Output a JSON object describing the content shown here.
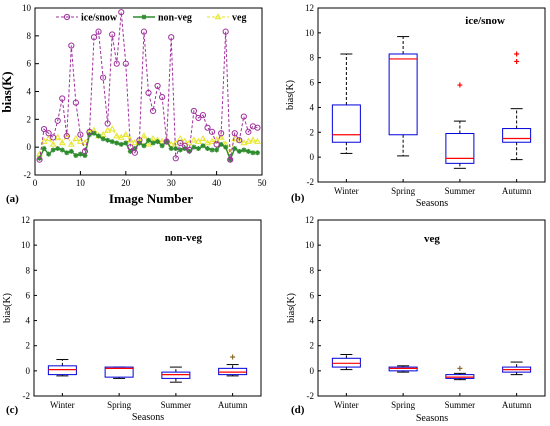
{
  "colors": {
    "ice": "#a0309e",
    "nonveg": "#2e8b2e",
    "veg": "#e6e62a",
    "box": "#0000dd",
    "median": "#ff0000",
    "outlier": "#ff0000",
    "outlier_dark": "#8b6a2b"
  },
  "chart_data": [
    {
      "type": "line",
      "panel_label": "(a)",
      "xlabel": "Image Number",
      "ylabel": "bias(K)",
      "xlim": [
        0,
        50
      ],
      "ylim": [
        -2,
        10
      ],
      "xticks": [
        0,
        10,
        20,
        30,
        40,
        50
      ],
      "yticks": [
        -2,
        0,
        2,
        4,
        6,
        8,
        10
      ],
      "legend_position": "top",
      "series": [
        {
          "name": "ice/snow",
          "color": "ice",
          "marker": "circle",
          "dash": true,
          "values": [
            -0.9,
            1.3,
            1.0,
            0.7,
            1.9,
            3.5,
            0.8,
            7.3,
            3.2,
            0.9,
            -0.3,
            1.1,
            7.9,
            8.3,
            5.0,
            1.7,
            8.1,
            6.0,
            9.7,
            6.0,
            0.0,
            -0.4,
            0.5,
            8.3,
            3.9,
            2.6,
            4.4,
            3.6,
            0.4,
            7.9,
            -0.8,
            0.3,
            0.1,
            -0.2,
            2.6,
            2.1,
            2.3,
            1.4,
            1.1,
            0.2,
            1.0,
            8.3,
            -0.9,
            1.0,
            0.5,
            2.2,
            1.1,
            1.5,
            1.4
          ]
        },
        {
          "name": "non-veg",
          "color": "nonveg",
          "marker": "star",
          "dash": false,
          "values": [
            -0.8,
            -0.1,
            -0.5,
            -0.2,
            -0.1,
            -0.2,
            -0.4,
            -0.3,
            -0.6,
            -0.5,
            -0.6,
            0.9,
            1.0,
            0.8,
            0.6,
            0.5,
            0.4,
            0.3,
            0.2,
            0.3,
            -0.3,
            -0.1,
            0.3,
            0.1,
            0.5,
            0.3,
            0.4,
            0.1,
            0.4,
            -0.1,
            -0.1,
            -0.2,
            -0.1,
            -0.3,
            0.0,
            -0.1,
            0.1,
            -0.1,
            -0.2,
            -0.2,
            0.2,
            0.0,
            -0.9,
            -0.1,
            -0.3,
            -0.2,
            -0.3,
            -0.4,
            -0.4
          ]
        },
        {
          "name": "veg",
          "color": "veg",
          "marker": "triangle",
          "dash": true,
          "values": [
            -0.5,
            0.4,
            0.6,
            0.2,
            0.7,
            0.3,
            0.9,
            0.2,
            0.6,
            0.4,
            0.3,
            1.1,
            1.2,
            0.8,
            0.9,
            1.2,
            1.3,
            0.8,
            0.7,
            0.9,
            0.5,
            0.3,
            0.4,
            0.8,
            0.2,
            0.6,
            0.5,
            0.4,
            0.5,
            0.2,
            0.3,
            0.6,
            0.4,
            0.3,
            0.5,
            0.4,
            0.6,
            0.3,
            0.4,
            0.5,
            0.7,
            0.2,
            -0.4,
            0.6,
            0.5,
            0.3,
            0.4,
            0.5,
            0.4
          ]
        }
      ]
    },
    {
      "type": "box",
      "panel_label": "(b)",
      "title": "ice/snow",
      "xlabel": "Seasons",
      "ylabel": "bias(K)",
      "ylim": [
        -2,
        12
      ],
      "yticks": [
        -2,
        0,
        2,
        4,
        6,
        8,
        10,
        12
      ],
      "categories": [
        "Winter",
        "Spring",
        "Summer",
        "Autumn"
      ],
      "boxes": [
        {
          "whisker_low": 0.3,
          "q1": 1.2,
          "median": 1.8,
          "q3": 4.2,
          "whisker_high": 8.3,
          "outliers": []
        },
        {
          "whisker_low": 0.1,
          "q1": 1.8,
          "median": 7.9,
          "q3": 8.3,
          "whisker_high": 9.7,
          "outliers": []
        },
        {
          "whisker_low": -0.9,
          "q1": -0.5,
          "median": -0.1,
          "q3": 1.9,
          "whisker_high": 2.9,
          "outliers": [
            5.8
          ]
        },
        {
          "whisker_low": -0.2,
          "q1": 1.2,
          "median": 1.5,
          "q3": 2.3,
          "whisker_high": 3.9,
          "outliers": [
            7.7,
            8.3
          ]
        }
      ]
    },
    {
      "type": "box",
      "panel_label": "(c)",
      "title": "non-veg",
      "xlabel": "Seasons",
      "ylabel": "bias(K)",
      "ylim": [
        -2,
        12
      ],
      "yticks": [
        -2,
        0,
        2,
        4,
        6,
        8,
        10,
        12
      ],
      "categories": [
        "Winter",
        "Spring",
        "Summer",
        "Autumn"
      ],
      "boxes": [
        {
          "whisker_low": -0.4,
          "q1": -0.3,
          "median": 0.1,
          "q3": 0.4,
          "whisker_high": 0.9,
          "outliers": []
        },
        {
          "whisker_low": -0.6,
          "q1": -0.5,
          "median": 0.2,
          "q3": 0.3,
          "whisker_high": 0.3,
          "outliers": []
        },
        {
          "whisker_low": -0.9,
          "q1": -0.6,
          "median": -0.3,
          "q3": -0.1,
          "whisker_high": 0.3,
          "outliers": []
        },
        {
          "whisker_low": -0.4,
          "q1": -0.3,
          "median": -0.1,
          "q3": 0.2,
          "whisker_high": 0.5,
          "outliers": [
            1.1
          ]
        }
      ]
    },
    {
      "type": "box",
      "panel_label": "(d)",
      "title": "veg",
      "xlabel": "Seasons",
      "ylabel": "bias(K)",
      "ylim": [
        -2,
        12
      ],
      "yticks": [
        -2,
        0,
        2,
        4,
        6,
        8,
        10,
        12
      ],
      "categories": [
        "Winter",
        "Spring",
        "Summer",
        "Autumn"
      ],
      "boxes": [
        {
          "whisker_low": 0.1,
          "q1": 0.3,
          "median": 0.6,
          "q3": 1.0,
          "whisker_high": 1.3,
          "outliers": []
        },
        {
          "whisker_low": -0.1,
          "q1": 0.0,
          "median": 0.2,
          "q3": 0.3,
          "whisker_high": 0.4,
          "outliers": []
        },
        {
          "whisker_low": -0.7,
          "q1": -0.6,
          "median": -0.5,
          "q3": -0.3,
          "whisker_high": -0.2,
          "outliers": [
            0.2
          ]
        },
        {
          "whisker_low": -0.3,
          "q1": -0.1,
          "median": 0.1,
          "q3": 0.3,
          "whisker_high": 0.7,
          "outliers": []
        }
      ]
    }
  ]
}
